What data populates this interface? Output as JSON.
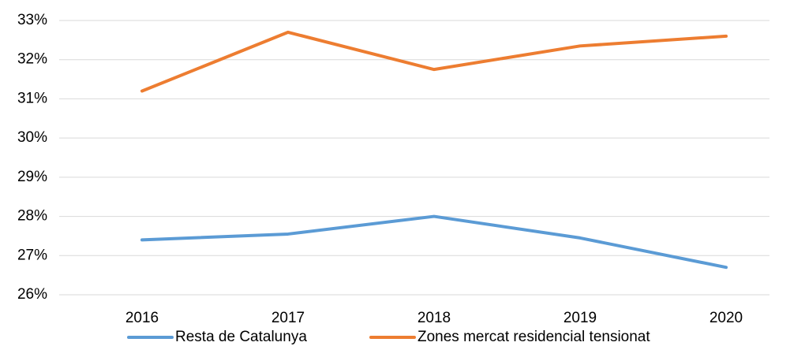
{
  "chart_data": {
    "type": "line",
    "categories": [
      "2016",
      "2017",
      "2018",
      "2019",
      "2020"
    ],
    "series": [
      {
        "name": "Resta de Catalunya",
        "color": "#5b9bd5",
        "values": [
          27.4,
          27.55,
          28.0,
          27.45,
          26.7
        ]
      },
      {
        "name": "Zones mercat residencial tensionat",
        "color": "#ed7d31",
        "values": [
          31.2,
          32.7,
          31.75,
          32.35,
          32.6
        ]
      }
    ],
    "ylim": [
      26,
      33
    ],
    "yticks": [
      {
        "value": 26,
        "label": "26%"
      },
      {
        "value": 27,
        "label": "27%"
      },
      {
        "value": 28,
        "label": "28%"
      },
      {
        "value": 29,
        "label": "29%"
      },
      {
        "value": 30,
        "label": "30%"
      },
      {
        "value": 31,
        "label": "31%"
      },
      {
        "value": 32,
        "label": "32%"
      },
      {
        "value": 33,
        "label": "33%"
      }
    ],
    "grid": true,
    "legend": "bottom"
  }
}
